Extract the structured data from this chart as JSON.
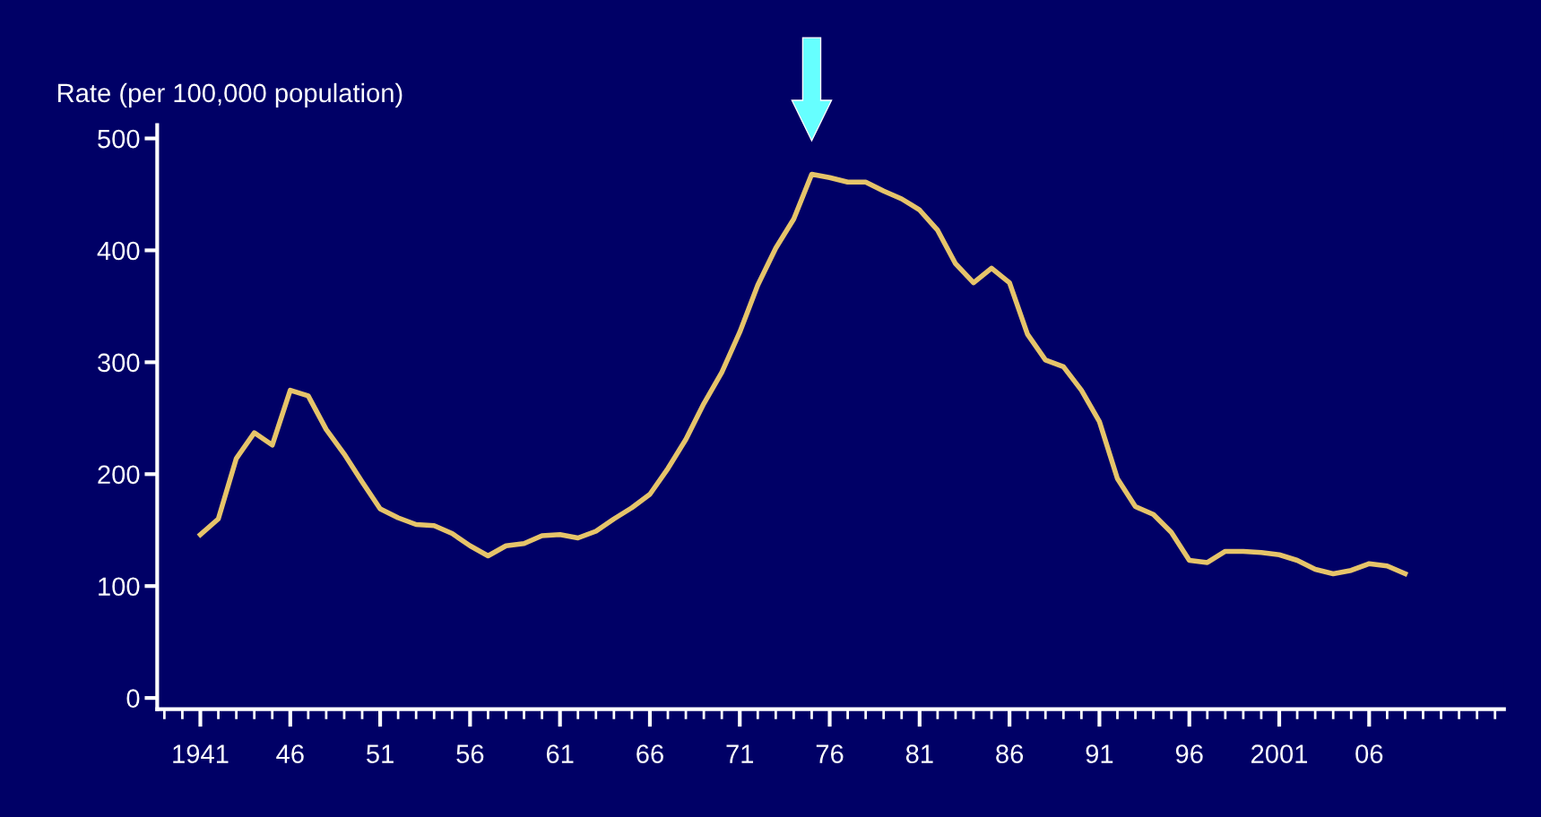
{
  "chart_data": {
    "type": "line",
    "ylabel": "Rate (per 100,000 population)",
    "x": [
      1941,
      1942,
      1943,
      1944,
      1945,
      1946,
      1947,
      1948,
      1949,
      1950,
      1951,
      1952,
      1953,
      1954,
      1955,
      1956,
      1957,
      1958,
      1959,
      1960,
      1961,
      1962,
      1963,
      1964,
      1965,
      1966,
      1967,
      1968,
      1969,
      1970,
      1971,
      1972,
      1973,
      1974,
      1975,
      1976,
      1977,
      1978,
      1979,
      1980,
      1981,
      1982,
      1983,
      1984,
      1985,
      1986,
      1987,
      1988,
      1989,
      1990,
      1991,
      1992,
      1993,
      1994,
      1995,
      1996,
      1997,
      1998,
      1999,
      2000,
      2001,
      2002,
      2003,
      2004,
      2005,
      2006,
      2007,
      2008
    ],
    "series": [
      {
        "color": "#e6c46a",
        "values": [
          146,
          160,
          214,
          237,
          226,
          275,
          270,
          240,
          218,
          193,
          169,
          161,
          155,
          154,
          147,
          136,
          127,
          136,
          138,
          145,
          146,
          143,
          149,
          160,
          170,
          182,
          205,
          231,
          263,
          291,
          327,
          369,
          402,
          428,
          468,
          465,
          461,
          461,
          453,
          446,
          436,
          418,
          388,
          371,
          384,
          371,
          325,
          302,
          296,
          275,
          247,
          196,
          171,
          164,
          148,
          123,
          121,
          131,
          131,
          130,
          128,
          123,
          115,
          111,
          114,
          120,
          118,
          111
        ]
      }
    ],
    "xlim": [
      1938.6,
      2013.5
    ],
    "xticks": [
      1941,
      {
        "value": 1946,
        "label": "46"
      },
      {
        "value": 1951,
        "label": "51"
      },
      {
        "value": 1956,
        "label": "56"
      },
      {
        "value": 1961,
        "label": "61"
      },
      {
        "value": 1966,
        "label": "66"
      },
      {
        "value": 1971,
        "label": "71"
      },
      {
        "value": 1976,
        "label": "76"
      },
      {
        "value": 1981,
        "label": "81"
      },
      {
        "value": 1986,
        "label": "86"
      },
      {
        "value": 1991,
        "label": "91"
      },
      {
        "value": 1996,
        "label": "96"
      },
      {
        "value": 2001,
        "label": "2001"
      },
      {
        "value": 2006,
        "label": "06"
      }
    ],
    "ylim": [
      -10,
      512
    ],
    "yticks": [
      0,
      100,
      200,
      300,
      400,
      500
    ],
    "grid": false,
    "legend": false,
    "marker": "none",
    "line_style": "solid"
  }
}
